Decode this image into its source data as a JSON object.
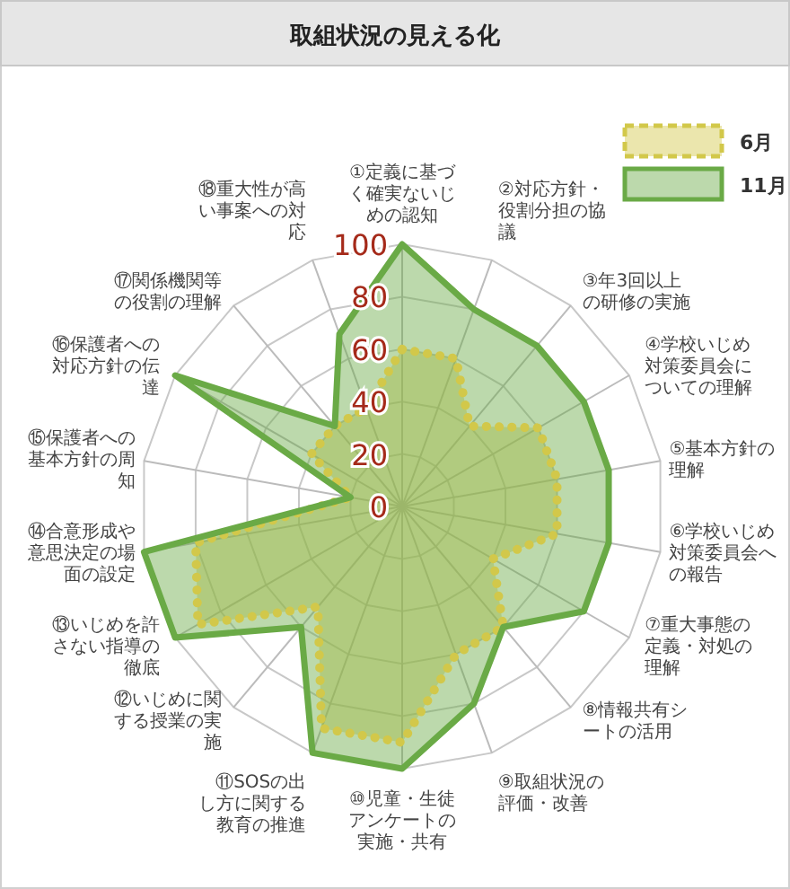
{
  "chart_data": {
    "type": "radar",
    "title": "取組状況の見える化",
    "categories": [
      "①定義に基づく確実ないじめの認知",
      "②対応方針・役割分担の協議",
      "③年3回以上の研修の実施",
      "④学校いじめ対策委員会についての理解",
      "⑤基本方針の理解",
      "⑥学校いじめ対策委員会への報告",
      "⑦重大事態の定義・対処の理解",
      "⑧情報共有シートの活用",
      "⑨取組状況の評価・改善",
      "⑩児童・生徒アンケートの実施・共有",
      "⑪SOSの出し方に関する教育の推進",
      "⑫いじめに関する授業の実施",
      "⑬いじめを許さない指導の徹底",
      "⑭合意形成や意思決定の場面の設定",
      "⑮保護者への基本方針の周知",
      "⑯保護者への対応方針の伝達",
      "⑰関係機関等の役割の理解",
      "⑱重大性が高い事案への対応"
    ],
    "series": [
      {
        "name": "6月",
        "color": "#d2c84a",
        "line_style": "dotted",
        "values": [
          60,
          60,
          40,
          60,
          60,
          60,
          40,
          60,
          60,
          90,
          90,
          50,
          90,
          80,
          20,
          40,
          40,
          40
        ]
      },
      {
        "name": "11月",
        "color": "#6aaa46",
        "line_style": "solid",
        "values": [
          100,
          80,
          80,
          80,
          80,
          80,
          80,
          60,
          80,
          100,
          100,
          60,
          100,
          100,
          20,
          100,
          40,
          70
        ]
      }
    ],
    "ylim": [
      0,
      100
    ],
    "yticks": [
      0,
      20,
      40,
      60,
      80,
      100
    ],
    "grid": true,
    "legend": "top right"
  }
}
